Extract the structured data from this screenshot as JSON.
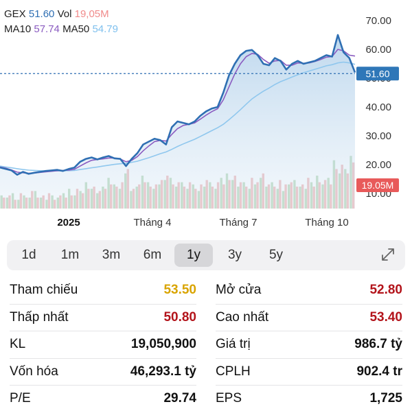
{
  "legend": {
    "ticker": "GEX",
    "price": "51.60",
    "vol_label": "Vol",
    "vol_value": "19,05M",
    "ma10_label": "MA10",
    "ma10_value": "57.74",
    "ma50_label": "MA50",
    "ma50_value": "54.79"
  },
  "colors": {
    "price_line": "#2f6fb3",
    "ma10": "#8a5bc0",
    "ma50": "#8fc7ee",
    "vol_up": "#b9d9b9",
    "vol_down": "#f0b7b7",
    "yellow": "#d9a400",
    "red": "#b3141b",
    "price_tag": "#2f77b8",
    "vol_tag": "#e85a5a"
  },
  "chart_data": {
    "type": "line",
    "y_axis_ticks": [
      "70.00",
      "60.00",
      "50.00",
      "40.00",
      "30.00",
      "20.00",
      "10.00"
    ],
    "ylim": [
      10,
      70
    ],
    "x_ticks": [
      "2025",
      "Tháng 4",
      "Tháng 7",
      "Tháng 10"
    ],
    "current_price_label": "51.60",
    "current_volume_label": "19.05M",
    "series": [
      {
        "name": "GEX",
        "values": [
          19,
          18.5,
          18,
          16.5,
          17.5,
          16.8,
          17.2,
          17.5,
          17.8,
          18,
          18.2,
          17.8,
          18.5,
          19,
          21,
          22,
          22.5,
          21.8,
          22.5,
          23,
          22.2,
          22,
          19.5,
          22,
          24,
          27,
          28,
          29,
          28.5,
          27,
          33,
          35,
          34.5,
          34,
          35,
          37,
          38.5,
          39.5,
          40,
          45,
          51,
          55,
          58,
          59.5,
          59.8,
          58,
          55,
          54.5,
          57,
          56,
          53,
          55,
          56,
          55,
          55.5,
          56,
          57,
          58,
          57.5,
          65,
          59,
          57,
          52
        ]
      },
      {
        "name": "MA10",
        "values": [
          19.2,
          18.8,
          18.2,
          17.4,
          17.2,
          17,
          17.1,
          17.3,
          17.5,
          17.7,
          17.9,
          18,
          18.1,
          18.4,
          19.5,
          20.6,
          21.5,
          21.8,
          22,
          22.3,
          22.3,
          22,
          21,
          21.5,
          22.8,
          24.8,
          26.5,
          28,
          28.4,
          28.2,
          30.5,
          32.5,
          33.6,
          34,
          34.5,
          35.8,
          37.2,
          38.4,
          39.4,
          42.5,
          47,
          51.5,
          55,
          57.5,
          58.6,
          58.3,
          56.5,
          55.2,
          56,
          56.2,
          54.5,
          54.5,
          55.3,
          55.2,
          55.3,
          55.8,
          56.5,
          57.3,
          57.5,
          60,
          59.5,
          58,
          57.7
        ]
      },
      {
        "name": "MA50",
        "values": [
          19.5,
          19.2,
          18.9,
          18.6,
          18.3,
          18.1,
          18,
          17.9,
          17.8,
          17.8,
          17.8,
          17.9,
          17.9,
          18,
          18.3,
          18.6,
          18.9,
          19.2,
          19.5,
          19.8,
          20.1,
          20.3,
          20.5,
          20.8,
          21.2,
          21.8,
          22.4,
          23.1,
          23.8,
          24.4,
          25.3,
          26.3,
          27.2,
          28,
          28.8,
          29.8,
          30.8,
          31.8,
          32.8,
          34,
          35.6,
          37.3,
          39.1,
          41,
          42.8,
          44.2,
          45.5,
          46.6,
          47.8,
          48.8,
          49.6,
          50.4,
          51.2,
          51.9,
          52.5,
          53.1,
          53.7,
          54.3,
          54.7,
          55.3,
          55.6,
          55.3,
          54.8
        ]
      }
    ],
    "volume_up": [
      6,
      5,
      7,
      4,
      6,
      5,
      8,
      5,
      4,
      6,
      5,
      7,
      9,
      6,
      8,
      12,
      9,
      7,
      10,
      14,
      11,
      9,
      16,
      8,
      10,
      15,
      12,
      9,
      11,
      13,
      14,
      10,
      12,
      9,
      11,
      8,
      10,
      12,
      9,
      14,
      16,
      13,
      10,
      12,
      9,
      11,
      14,
      10,
      12,
      9,
      8,
      11,
      13,
      10,
      9,
      12,
      15,
      11,
      14,
      22,
      16,
      18,
      24
    ],
    "volume_down": [
      5,
      6,
      4,
      7,
      5,
      8,
      5,
      6,
      7,
      4,
      6,
      5,
      6,
      9,
      7,
      9,
      10,
      8,
      9,
      11,
      10,
      12,
      18,
      9,
      11,
      12,
      10,
      11,
      13,
      15,
      11,
      12,
      10,
      12,
      9,
      11,
      13,
      10,
      12,
      11,
      13,
      15,
      12,
      10,
      14,
      12,
      16,
      11,
      10,
      13,
      11,
      12,
      10,
      11,
      14,
      10,
      12,
      13,
      11,
      18,
      20,
      16,
      21
    ]
  },
  "ranges": [
    "1d",
    "1m",
    "3m",
    "6m",
    "1y",
    "3y",
    "5y"
  ],
  "active_range": "1y",
  "stats": [
    {
      "left": {
        "label": "Tham chiếu",
        "value": "53.50",
        "color": "#d9a400"
      },
      "right": {
        "label": "Mở cửa",
        "value": "52.80",
        "color": "#b3141b"
      }
    },
    {
      "left": {
        "label": "Thấp nhất",
        "value": "50.80",
        "color": "#b3141b"
      },
      "right": {
        "label": "Cao nhất",
        "value": "53.40",
        "color": "#b3141b"
      }
    },
    {
      "left": {
        "label": "KL",
        "value": "19,050,900",
        "color": "#111111"
      },
      "right": {
        "label": "Giá trị",
        "value": "986.7 tỷ",
        "color": "#111111"
      }
    },
    {
      "left": {
        "label": "Vốn hóa",
        "value": "46,293.1 tỷ",
        "color": "#111111"
      },
      "right": {
        "label": "CPLH",
        "value": "902.4 tr",
        "color": "#111111"
      }
    },
    {
      "left": {
        "label": "P/E",
        "value": "29.74",
        "color": "#111111"
      },
      "right": {
        "label": "EPS",
        "value": "1,725",
        "color": "#111111"
      }
    }
  ]
}
